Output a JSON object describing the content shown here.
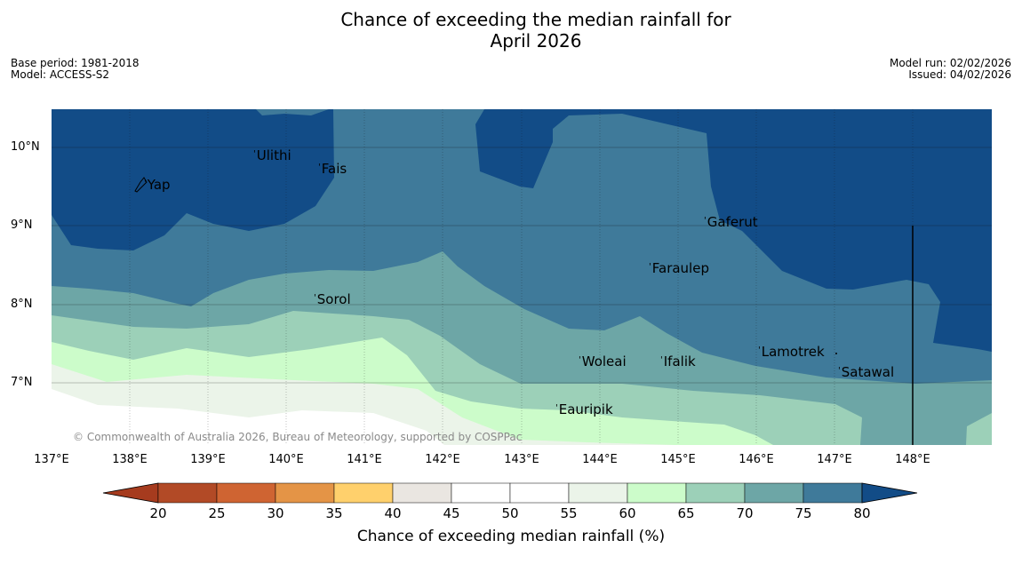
{
  "title": {
    "line1": "Chance of exceeding the median rainfall for",
    "line2": "April 2026"
  },
  "info": {
    "base_period": "Base period: 1981-2018",
    "model": "Model: ACCESS-S2",
    "model_run": "Model run: 02/02/2026",
    "issued": "Issued: 04/02/2026"
  },
  "latitudes": [
    "10°N",
    "9°N",
    "8°N",
    "7°N"
  ],
  "longitudes": [
    "137°E",
    "138°E",
    "139°E",
    "140°E",
    "141°E",
    "142°E",
    "143°E",
    "144°E",
    "145°E",
    "146°E",
    "147°E",
    "148°E"
  ],
  "places": [
    {
      "name": "Yap"
    },
    {
      "name": "Ulithi"
    },
    {
      "name": "Fais"
    },
    {
      "name": "Gaferut"
    },
    {
      "name": "Faraulep"
    },
    {
      "name": "Sorol"
    },
    {
      "name": "Woleai"
    },
    {
      "name": "Ifalik"
    },
    {
      "name": "Lamotrek"
    },
    {
      "name": "Satawal"
    },
    {
      "name": "Eauripik"
    }
  ],
  "copyright": "© Commonwealth of Australia 2026, Bureau of Meteorology, supported by COSPPac",
  "colorbar": {
    "label": "Chance of exceeding median rainfall (%)",
    "ticks": [
      "20",
      "25",
      "30",
      "35",
      "40",
      "45",
      "50",
      "55",
      "60",
      "65",
      "70",
      "75",
      "80"
    ],
    "colors": {
      "under": "#a63b1e",
      "bins": [
        "#b24a26",
        "#cf6432",
        "#e49446",
        "#ffd06c",
        "#eae6e1",
        "#ffffff",
        "#ffffff",
        "#ebf4e9",
        "#ccfcca",
        "#9cd0b8",
        "#6da6a6",
        "#3f7a9a"
      ],
      "over": "#124c87"
    }
  },
  "map_colors": {
    "c80": "#124c87",
    "c75": "#3f7a9a",
    "c70": "#6da6a6",
    "c65": "#9cd0b8",
    "c60": "#ccfcca",
    "c55": "#ebf4e9",
    "c50": "#ffffff"
  }
}
